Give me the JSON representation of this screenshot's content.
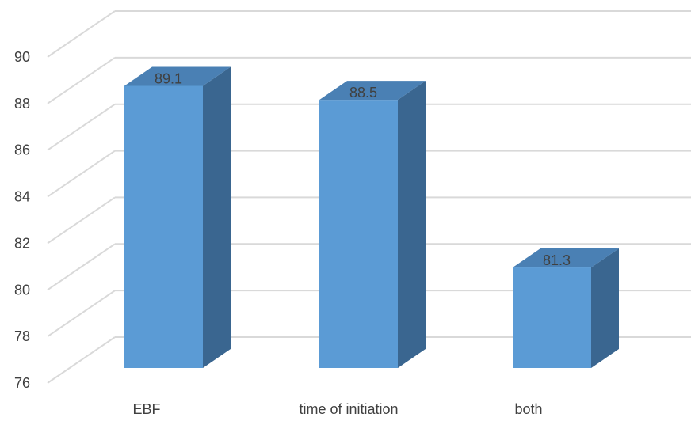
{
  "chart_data": {
    "type": "bar",
    "style": "3d-column",
    "categories": [
      "EBF",
      "time of initiation",
      "both"
    ],
    "values": [
      89.1,
      88.5,
      81.3
    ],
    "data_labels": [
      "89.1",
      "88.5",
      "81.3"
    ],
    "title": "",
    "xlabel": "",
    "ylabel": "",
    "ylim": [
      76,
      90
    ],
    "yticks": [
      "76",
      "78",
      "80",
      "82",
      "84",
      "86",
      "88",
      "90"
    ],
    "grid": true,
    "legend": "none",
    "colors": {
      "bar_front": "#5b9bd5",
      "bar_top": "#4a80b4",
      "bar_side": "#3a6690",
      "gridline": "#d9d9d9",
      "text": "#404040"
    }
  }
}
